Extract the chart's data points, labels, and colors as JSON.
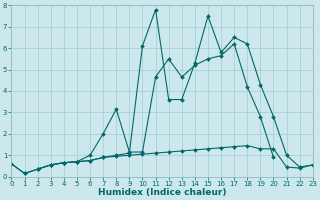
{
  "xlabel": "Humidex (Indice chaleur)",
  "xlim": [
    0,
    23
  ],
  "ylim": [
    0,
    8
  ],
  "yticks": [
    0,
    1,
    2,
    3,
    4,
    5,
    6,
    7,
    8
  ],
  "xticks": [
    0,
    1,
    2,
    3,
    4,
    5,
    6,
    7,
    8,
    9,
    10,
    11,
    12,
    13,
    14,
    15,
    16,
    17,
    18,
    19,
    20,
    21,
    22,
    23
  ],
  "bg_color": "#cce8ec",
  "grid_color": "#a0ccd4",
  "line_color": "#006868",
  "line1_x": [
    0,
    1,
    2,
    3,
    4,
    5,
    6,
    7,
    8,
    9,
    10,
    11,
    12,
    13,
    14,
    15,
    16,
    17,
    18,
    19,
    20,
    21,
    22,
    23
  ],
  "line1_y": [
    0.6,
    0.15,
    0.35,
    0.55,
    0.65,
    0.7,
    0.75,
    0.9,
    1.0,
    1.1,
    6.1,
    7.8,
    3.6,
    3.6,
    5.3,
    7.5,
    5.8,
    6.5,
    6.2,
    4.3,
    2.8,
    1.0,
    0.45,
    0.55
  ],
  "line2_x": [
    2,
    3,
    4,
    5,
    6,
    7,
    8,
    9,
    10,
    11,
    12,
    13,
    14,
    15,
    16,
    17,
    18,
    19,
    20
  ],
  "line2_y": [
    0.35,
    0.55,
    0.65,
    0.7,
    1.0,
    2.0,
    3.15,
    1.15,
    1.15,
    4.65,
    5.5,
    4.65,
    5.2,
    5.5,
    5.65,
    6.2,
    4.2,
    2.8,
    0.9
  ],
  "line3_x": [
    0,
    1,
    2,
    3,
    4,
    5,
    6,
    7,
    8,
    9,
    10,
    11,
    12,
    13,
    14,
    15,
    16,
    17,
    18,
    19,
    20,
    21,
    22,
    23
  ],
  "line3_y": [
    0.6,
    0.15,
    0.35,
    0.55,
    0.65,
    0.7,
    0.75,
    0.9,
    0.95,
    1.0,
    1.05,
    1.1,
    1.15,
    1.2,
    1.25,
    1.3,
    1.35,
    1.4,
    1.45,
    1.3,
    1.3,
    0.45,
    0.4,
    0.55
  ]
}
